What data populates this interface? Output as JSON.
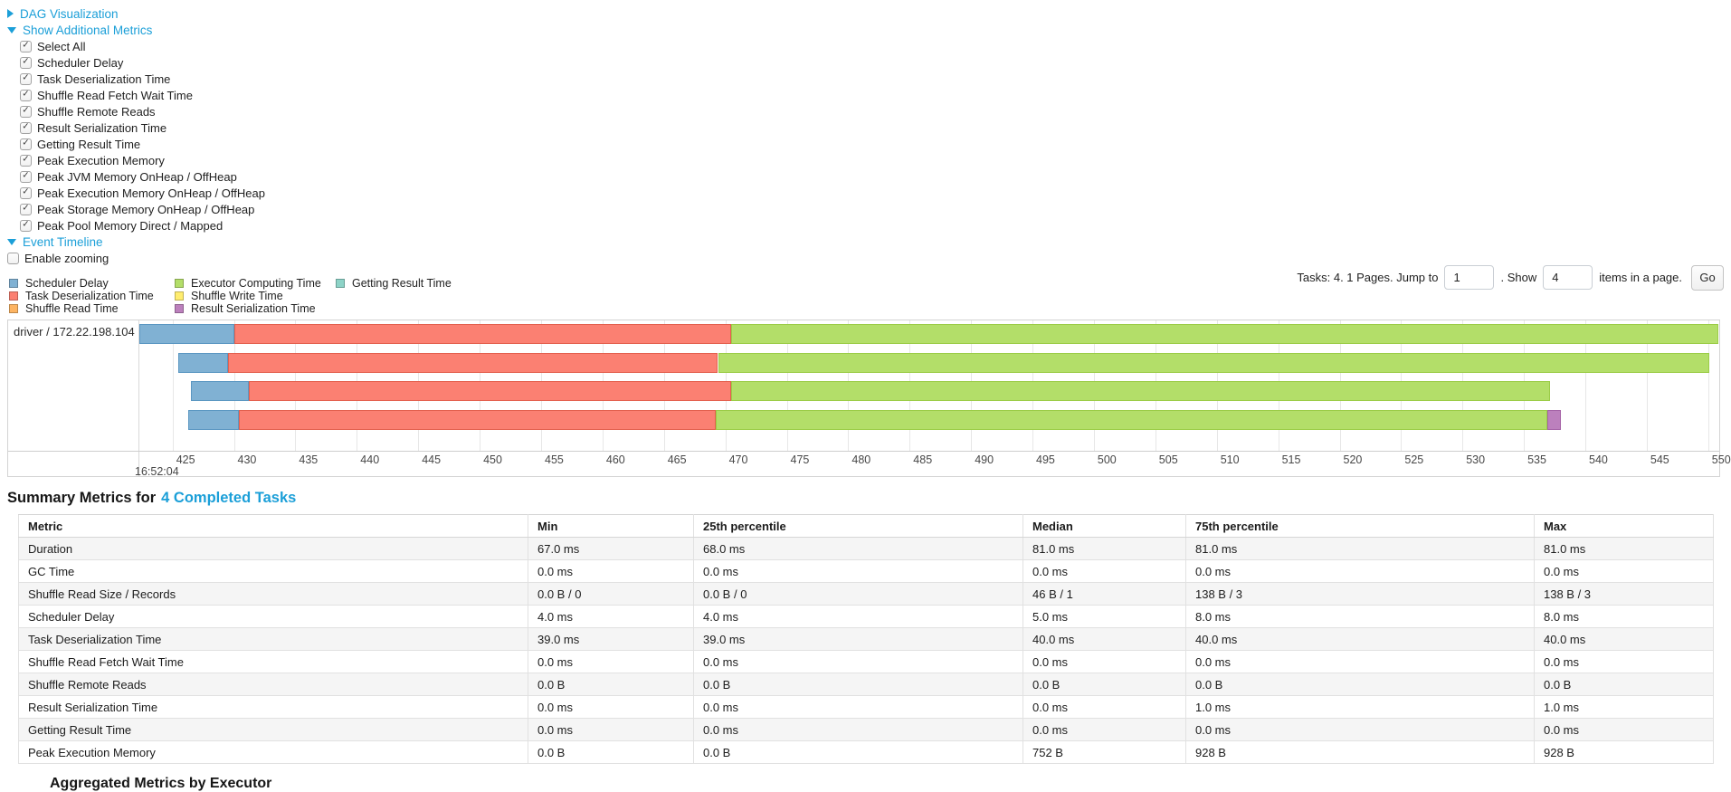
{
  "toggles": {
    "dag": "DAG Visualization",
    "metrics": "Show Additional Metrics",
    "timeline": "Event Timeline"
  },
  "metrics_panel": {
    "items": [
      "Select All",
      "Scheduler Delay",
      "Task Deserialization Time",
      "Shuffle Read Fetch Wait Time",
      "Shuffle Remote Reads",
      "Result Serialization Time",
      "Getting Result Time",
      "Peak Execution Memory",
      "Peak JVM Memory OnHeap / OffHeap",
      "Peak Execution Memory OnHeap / OffHeap",
      "Peak Storage Memory OnHeap / OffHeap",
      "Peak Pool Memory Direct / Mapped"
    ],
    "all_checked": true
  },
  "enable_zooming_label": "Enable zooming",
  "timeline_legend": {
    "columns": [
      [
        0,
        1,
        2
      ],
      [
        3,
        4,
        5
      ],
      [
        6
      ]
    ],
    "items": [
      {
        "key": "scheduler_delay",
        "label": "Scheduler Delay",
        "fill": "#80B1D3",
        "border": "#5B97C2"
      },
      {
        "key": "task_deserialization",
        "label": "Task Deserialization Time",
        "fill": "#FB8072",
        "border": "#E3604E"
      },
      {
        "key": "shuffle_read",
        "label": "Shuffle Read Time",
        "fill": "#FDB462",
        "border": "#E59A43"
      },
      {
        "key": "executor_computing",
        "label": "Executor Computing Time",
        "fill": "#B3DE69",
        "border": "#9BCC47"
      },
      {
        "key": "shuffle_write",
        "label": "Shuffle Write Time",
        "fill": "#FFED6F",
        "border": "#E0CE4F"
      },
      {
        "key": "result_serialization",
        "label": "Result Serialization Time",
        "fill": "#BC80BD",
        "border": "#A563A7"
      },
      {
        "key": "getting_result",
        "label": "Getting Result Time",
        "fill": "#8DD3C7",
        "border": "#6BBAAC"
      }
    ]
  },
  "pagination": {
    "prefix": "Tasks: 4. 1 Pages. Jump to",
    "jump_value": "1",
    "show_label": ". Show",
    "show_value": "4",
    "suffix": "items in a page.",
    "go_label": "Go"
  },
  "chart_data": {
    "type": "timeline",
    "group": "driver / 172.22.198.104",
    "axis": {
      "major_label": "16:52:04",
      "unit": "ms after 16:52:04",
      "domain": [
        422.3,
        550.9
      ],
      "ticks": [
        425,
        430,
        435,
        440,
        445,
        450,
        455,
        460,
        465,
        470,
        475,
        480,
        485,
        490,
        495,
        500,
        505,
        510,
        515,
        520,
        525,
        530,
        535,
        540,
        545,
        550
      ]
    },
    "tasks": [
      {
        "segments": [
          {
            "metric": "scheduler_delay",
            "start": 422.3,
            "end": 430.0
          },
          {
            "metric": "task_deserialization",
            "start": 430.0,
            "end": 470.5
          },
          {
            "metric": "executor_computing",
            "start": 470.5,
            "end": 550.8
          }
        ]
      },
      {
        "segments": [
          {
            "metric": "scheduler_delay",
            "start": 425.5,
            "end": 429.5
          },
          {
            "metric": "task_deserialization",
            "start": 429.5,
            "end": 469.4
          },
          {
            "metric": "executor_computing",
            "start": 469.4,
            "end": 550.1
          }
        ]
      },
      {
        "segments": [
          {
            "metric": "scheduler_delay",
            "start": 426.5,
            "end": 431.2
          },
          {
            "metric": "task_deserialization",
            "start": 431.2,
            "end": 470.5
          },
          {
            "metric": "executor_computing",
            "start": 470.5,
            "end": 537.1
          }
        ]
      },
      {
        "segments": [
          {
            "metric": "scheduler_delay",
            "start": 426.3,
            "end": 430.4
          },
          {
            "metric": "task_deserialization",
            "start": 430.4,
            "end": 469.2
          },
          {
            "metric": "executor_computing",
            "start": 469.2,
            "end": 536.9
          },
          {
            "metric": "result_serialization",
            "start": 536.9,
            "end": 538.0
          }
        ]
      }
    ]
  },
  "summary": {
    "title_prefix": "Summary Metrics for",
    "title_link": "4 Completed Tasks",
    "table": {
      "headers": [
        "Metric",
        "Min",
        "25th percentile",
        "Median",
        "75th percentile",
        "Max"
      ],
      "rows": [
        [
          "Duration",
          "67.0 ms",
          "68.0 ms",
          "81.0 ms",
          "81.0 ms",
          "81.0 ms"
        ],
        [
          "GC Time",
          "0.0 ms",
          "0.0 ms",
          "0.0 ms",
          "0.0 ms",
          "0.0 ms"
        ],
        [
          "Shuffle Read Size / Records",
          "0.0 B / 0",
          "0.0 B / 0",
          "46 B / 1",
          "138 B / 3",
          "138 B / 3"
        ],
        [
          "Scheduler Delay",
          "4.0 ms",
          "4.0 ms",
          "5.0 ms",
          "8.0 ms",
          "8.0 ms"
        ],
        [
          "Task Deserialization Time",
          "39.0 ms",
          "39.0 ms",
          "40.0 ms",
          "40.0 ms",
          "40.0 ms"
        ],
        [
          "Shuffle Read Fetch Wait Time",
          "0.0 ms",
          "0.0 ms",
          "0.0 ms",
          "0.0 ms",
          "0.0 ms"
        ],
        [
          "Shuffle Remote Reads",
          "0.0 B",
          "0.0 B",
          "0.0 B",
          "0.0 B",
          "0.0 B"
        ],
        [
          "Result Serialization Time",
          "0.0 ms",
          "0.0 ms",
          "0.0 ms",
          "1.0 ms",
          "1.0 ms"
        ],
        [
          "Getting Result Time",
          "0.0 ms",
          "0.0 ms",
          "0.0 ms",
          "0.0 ms",
          "0.0 ms"
        ],
        [
          "Peak Execution Memory",
          "0.0 B",
          "0.0 B",
          "752 B",
          "928 B",
          "928 B"
        ]
      ]
    }
  },
  "next_section_clipped": "Aggregated Metrics by Executor"
}
